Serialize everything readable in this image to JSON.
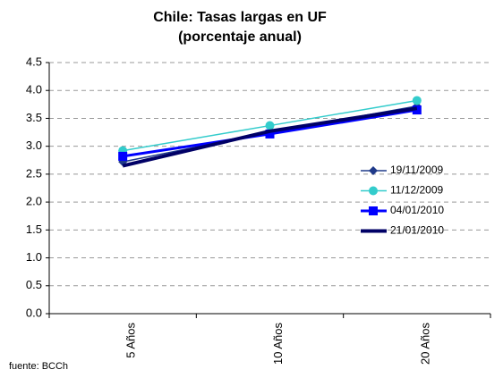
{
  "chart_data": {
    "type": "line",
    "title": [
      "Chile: Tasas largas en UF",
      "(porcentaje anual)"
    ],
    "annotation": "fuente: BCCh",
    "categories": [
      "5 Años",
      "10 Años",
      "20 Años"
    ],
    "series": [
      {
        "name": "19/11/2009",
        "color": "#1f3a8a",
        "marker": "diamond",
        "width": 1.5,
        "values": [
          2.72,
          3.25,
          3.72
        ]
      },
      {
        "name": "11/12/2009",
        "color": "#33cccc",
        "marker": "circle",
        "width": 1.5,
        "values": [
          2.92,
          3.37,
          3.82
        ]
      },
      {
        "name": "04/01/2010",
        "color": "#0000ff",
        "marker": "square",
        "width": 3,
        "values": [
          2.82,
          3.22,
          3.65
        ]
      },
      {
        "name": "21/01/2010",
        "color": "#000066",
        "marker": "none",
        "width": 4,
        "values": [
          2.65,
          3.27,
          3.68
        ]
      }
    ],
    "ylim": [
      0,
      4.5
    ],
    "yticks": [
      {
        "value": 0,
        "label": "0.0"
      },
      0.5,
      {
        "value": 1,
        "label": "1.0"
      },
      1.5,
      {
        "value": 2,
        "label": "2.0"
      },
      2.5,
      {
        "value": 3,
        "label": "3.0"
      },
      3.5,
      {
        "value": 4,
        "label": "4.0"
      },
      4.5
    ],
    "grid": true,
    "legend": "right"
  }
}
